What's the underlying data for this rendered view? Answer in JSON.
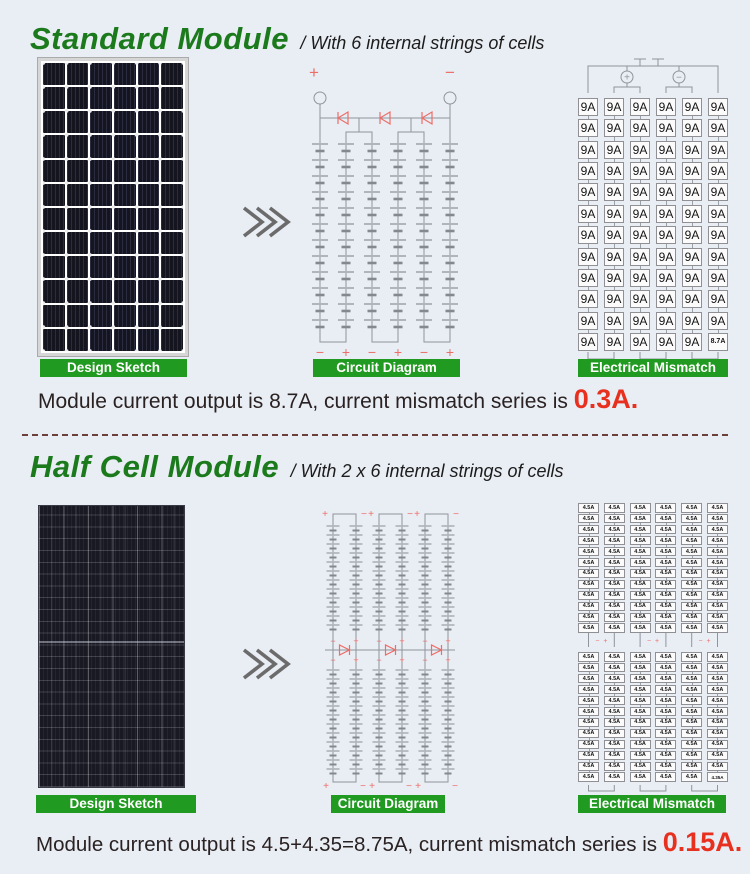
{
  "colors": {
    "background": "#e9edf4",
    "title_green": "#1b7a1b",
    "label_green": "#219a21",
    "highlight_red": "#e8301f",
    "circuit_red": "#ed6e68",
    "wire_gray": "#8f959d",
    "divider_maroon": "#6d3f3b"
  },
  "sections": [
    {
      "title": "Standard Module",
      "subtitle": "/ With 6 internal strings of cells",
      "labels": {
        "design_sketch": "Design Sketch",
        "circuit_diagram": "Circuit Diagram",
        "electrical_mismatch": "Electrical Mismatch"
      },
      "summary_prefix": "Module current output is 8.7A, current mismatch series is ",
      "summary_highlight": "0.3A.",
      "circuit": {
        "strings": 6,
        "cells_per_string": 12,
        "diodes": 3,
        "terminal_plus": "+",
        "terminal_minus": "−",
        "bottom_labels": [
          "−",
          "+",
          "−",
          "+",
          "−",
          "+"
        ]
      },
      "mismatch": {
        "rows": 12,
        "cols": 6,
        "cell_value": "9A",
        "last_cell_value": "8.7A",
        "terminal_plus": "+",
        "terminal_minus": "−"
      }
    },
    {
      "title": "Half Cell Module",
      "subtitle": "/ With 2 x 6 internal strings of cells",
      "labels": {
        "design_sketch": "Design Sketch",
        "circuit_diagram": "Circuit Diagram",
        "electrical_mismatch": "Electrical Mismatch"
      },
      "summary_prefix": "Module current output is 4.5+4.35=8.75A, current mismatch series is ",
      "summary_highlight": "0.15A.",
      "circuit": {
        "strings": 6,
        "banks": 2,
        "cells_per_half_string": 12,
        "diodes": 3,
        "pair_top_labels": [
          "+",
          "−"
        ],
        "pair_mid_labels": [
          "−",
          "+"
        ],
        "pair_bottom_labels": [
          "+",
          "−"
        ]
      },
      "mismatch": {
        "banks": 2,
        "rows": 12,
        "cols": 6,
        "cell_value": "4.5A",
        "last_cell_value": "4.35A",
        "mid_marks": [
          "−",
          "+"
        ]
      }
    }
  ]
}
